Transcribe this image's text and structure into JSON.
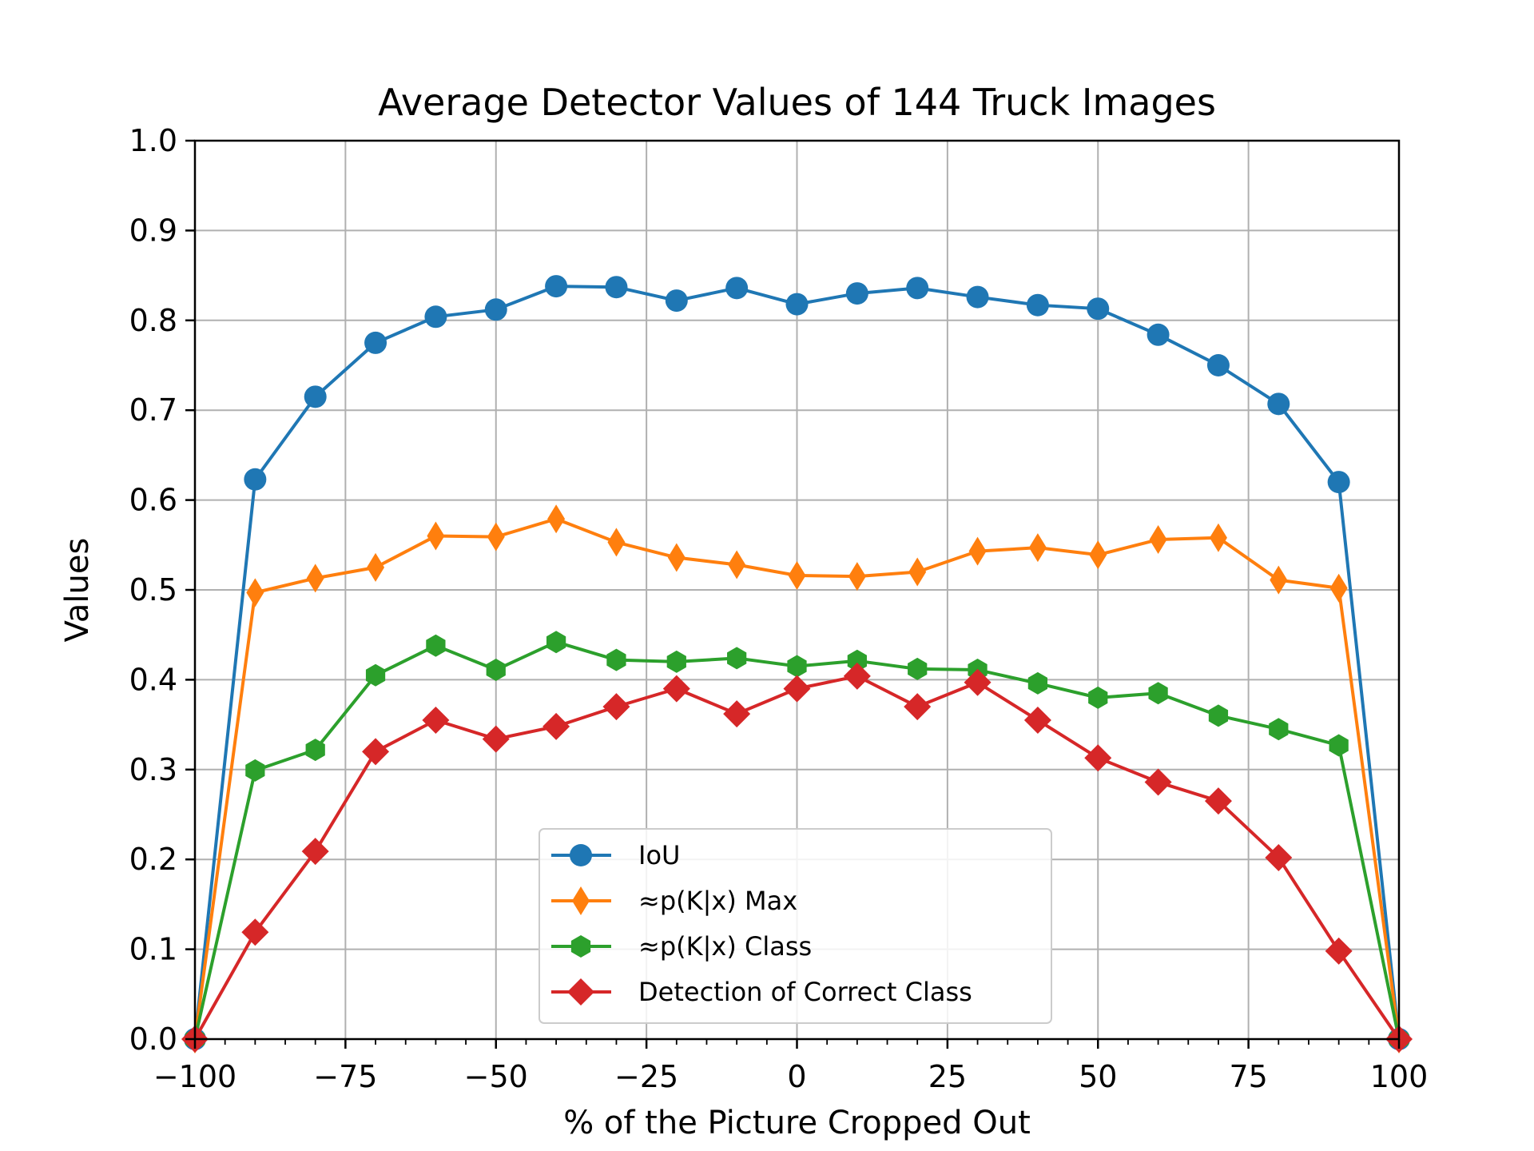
{
  "chart_data": {
    "type": "line",
    "title": "Average Detector Values of 144 Truck Images",
    "xlabel": "% of the Picture Cropped Out",
    "ylabel": "Values",
    "xlim": [
      -100,
      100
    ],
    "ylim": [
      0.0,
      1.0
    ],
    "grid": true,
    "legend_position": "lower-center",
    "x_ticks": [
      "−100",
      "−75",
      "−50",
      "−25",
      "0",
      "25",
      "50",
      "75",
      "100"
    ],
    "y_ticks": [
      "0.0",
      "0.1",
      "0.2",
      "0.3",
      "0.4",
      "0.5",
      "0.6",
      "0.7",
      "0.8",
      "0.9",
      "1.0"
    ],
    "x": [
      -100,
      -90,
      -80,
      -70,
      -60,
      -50,
      -40,
      -30,
      -20,
      -10,
      0,
      10,
      20,
      30,
      40,
      50,
      60,
      70,
      80,
      90,
      100
    ],
    "series": [
      {
        "name": "IoU",
        "color": "#1f77b4",
        "marker": "circle",
        "values": [
          0.0,
          0.623,
          0.715,
          0.775,
          0.804,
          0.812,
          0.838,
          0.837,
          0.822,
          0.836,
          0.818,
          0.83,
          0.836,
          0.826,
          0.817,
          0.813,
          0.784,
          0.75,
          0.707,
          0.62,
          0.0
        ]
      },
      {
        "name": "≈p(K|x) Max",
        "color": "#ff7f0e",
        "marker": "thin-diamond",
        "values": [
          0.0,
          0.497,
          0.513,
          0.525,
          0.56,
          0.559,
          0.579,
          0.553,
          0.536,
          0.528,
          0.516,
          0.515,
          0.52,
          0.543,
          0.547,
          0.539,
          0.556,
          0.558,
          0.511,
          0.502,
          0.0
        ]
      },
      {
        "name": "≈p(K|x) Class",
        "color": "#2ca02c",
        "marker": "hexagon",
        "values": [
          0.0,
          0.299,
          0.322,
          0.405,
          0.438,
          0.411,
          0.442,
          0.422,
          0.42,
          0.424,
          0.415,
          0.421,
          0.412,
          0.411,
          0.396,
          0.38,
          0.385,
          0.36,
          0.345,
          0.327,
          0.0
        ]
      },
      {
        "name": "Detection of Correct Class",
        "color": "#d62728",
        "marker": "diamond",
        "values": [
          0.0,
          0.119,
          0.209,
          0.32,
          0.355,
          0.334,
          0.348,
          0.37,
          0.39,
          0.362,
          0.39,
          0.404,
          0.37,
          0.397,
          0.355,
          0.313,
          0.286,
          0.265,
          0.202,
          0.098,
          0.0
        ]
      }
    ]
  }
}
